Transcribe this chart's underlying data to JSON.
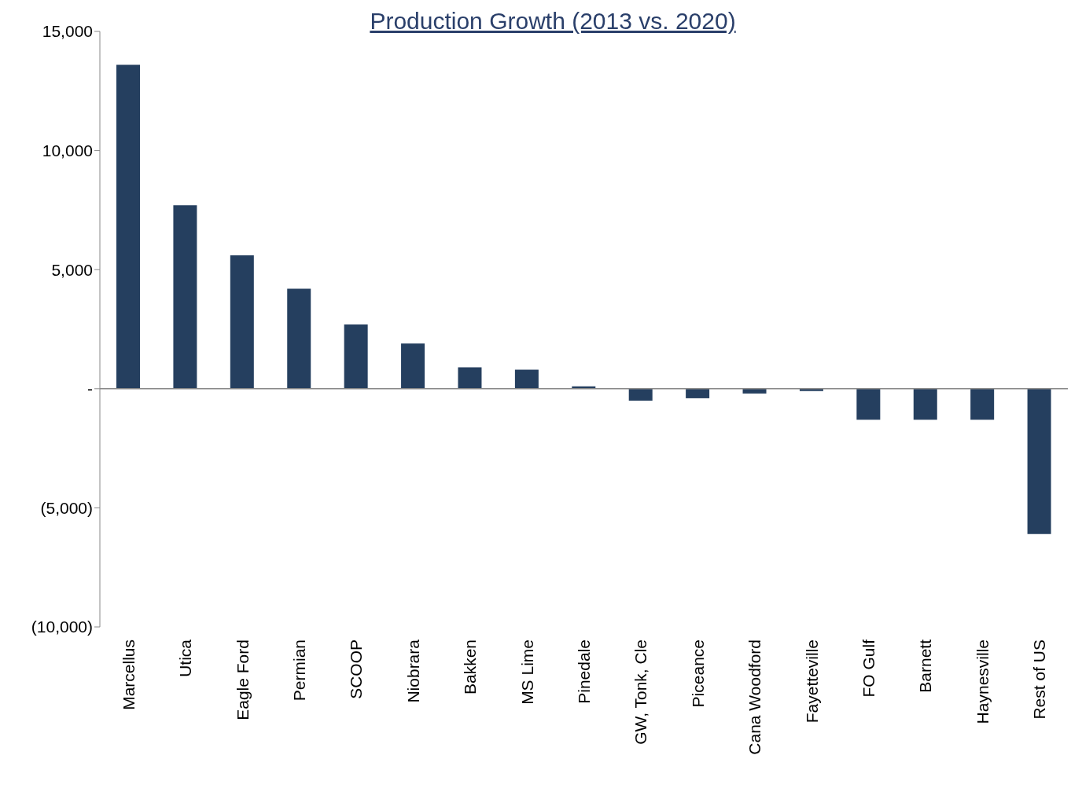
{
  "chart_data": {
    "type": "bar",
    "title": "Production Growth (2013 vs. 2020)",
    "categories": [
      "Marcellus",
      "Utica",
      "Eagle Ford",
      "Permian",
      "SCOOP",
      "Niobrara",
      "Bakken",
      "MS Lime",
      "Pinedale",
      "GW,  Tonk, Cle",
      "Piceance",
      "Cana Woodford",
      "Fayetteville",
      "FO Gulf",
      "Barnett",
      "Haynesville",
      "Rest of US"
    ],
    "values": [
      13600,
      7700,
      5600,
      4200,
      2700,
      1900,
      900,
      800,
      100,
      -500,
      -400,
      -200,
      -100,
      -1300,
      -1300,
      -1300,
      -6100
    ],
    "color": "#253f5f",
    "ylim": [
      -10000,
      15000
    ],
    "yticks": [
      {
        "value": -10000,
        "label": "(10,000)"
      },
      {
        "value": -5000,
        "label": "(5,000)"
      },
      {
        "value": 0,
        "label": "-"
      },
      {
        "value": 5000,
        "label": "5,000"
      },
      {
        "value": 10000,
        "label": "10,000"
      },
      {
        "value": 15000,
        "label": "15,000"
      }
    ],
    "legend": false
  }
}
